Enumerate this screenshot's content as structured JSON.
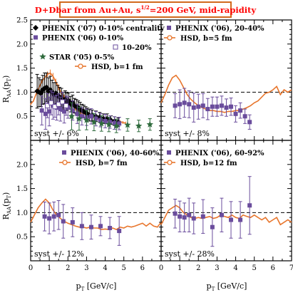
{
  "title": "D+Dbar from Au+Au, s^1/2=200 GeV, mid-rapidity",
  "title_parts": {
    "main": "D+Dbar",
    "rest1": " from Au+Au, s",
    "sup": "1/2",
    "rest2": "=200 GeV, mid-rapidity"
  },
  "colors": {
    "title_box_border": "#d2691e",
    "title_text": "#ff0000",
    "hsd": "#e8762d",
    "phenix": "#6a4c9c",
    "phenix07": "#000000",
    "star": "#2f6b3d",
    "dashed": "#000000"
  },
  "axis_text": {
    "x_label_main": "p",
    "x_label_sub": "T",
    "x_label_rest": " [GeV/c]",
    "y_label_main": "R",
    "y_label_sub": "AA",
    "y_label_rest": "(p",
    "y_label_sub2": "T",
    "y_label_end": ")"
  },
  "chart_data": [
    {
      "type": "line",
      "panel": "top-left",
      "xlim": [
        0,
        7
      ],
      "ylim": [
        0,
        2.5
      ],
      "x_ticks": [],
      "y_ticks": [
        "0.5",
        "1.0",
        "1.5",
        "2.0",
        "2.5"
      ],
      "legend": [
        {
          "marker": "diamond",
          "color": "#000000",
          "label": "PHENIX ('07) 0-10% centrality"
        },
        {
          "marker": "square",
          "color": "#6a4c9c",
          "label": "PHENIX ('06) 0-10%"
        },
        {
          "marker": "open-square",
          "color": "#6a4c9c",
          "label": "10-20%"
        },
        {
          "marker": "star",
          "color": "#2f6b3d",
          "label": "STAR ('05) 0-5%"
        },
        {
          "marker": "open-circle-line",
          "color": "#e8762d",
          "label": "HSD, b=1 fm"
        }
      ],
      "syst": "syst +/- 6%",
      "series": [
        {
          "name": "HSD, b=1 fm",
          "style": "hsd",
          "x": [
            0.0,
            0.15,
            0.3,
            0.45,
            0.6,
            0.75,
            0.9,
            1.05,
            1.2,
            1.35,
            1.5,
            1.65,
            1.8,
            1.95,
            2.1,
            2.25,
            2.4,
            2.55,
            2.7,
            2.85,
            3.0,
            3.15,
            3.3,
            3.45,
            3.6,
            3.75,
            3.9,
            4.05,
            4.2,
            4.35,
            4.5,
            4.65,
            4.8,
            4.95,
            5.1
          ],
          "y": [
            0.75,
            0.82,
            0.97,
            1.1,
            1.22,
            1.3,
            1.37,
            1.4,
            1.33,
            1.22,
            1.1,
            0.98,
            0.9,
            0.83,
            0.78,
            0.72,
            0.66,
            0.62,
            0.58,
            0.55,
            0.53,
            0.5,
            0.48,
            0.46,
            0.45,
            0.43,
            0.42,
            0.41,
            0.4,
            0.4,
            0.38,
            0.38,
            0.39,
            0.37,
            0.36
          ],
          "yerr": [
            0.02,
            0.02,
            0.03,
            0.03,
            0.04,
            0.05,
            0.06,
            0.07,
            0.07,
            0.06,
            0.06,
            0.05,
            0.05,
            0.05,
            0.05,
            0.04,
            0.04,
            0.04,
            0.04,
            0.04,
            0.04,
            0.04,
            0.03,
            0.03,
            0.03,
            0.03,
            0.03,
            0.03,
            0.03,
            0.03,
            0.03,
            0.03,
            0.03,
            0.03,
            0.03
          ]
        },
        {
          "name": "PHENIX ('07) 0-10% centrality",
          "style": "diamond",
          "x": [
            0.35,
            0.45,
            0.55,
            0.65,
            0.75,
            0.85,
            0.95,
            1.05,
            1.15,
            1.25,
            1.35,
            1.45,
            1.55,
            1.65,
            1.75,
            1.85,
            1.95,
            2.05,
            2.15,
            2.25,
            2.35,
            2.45,
            2.55,
            2.65,
            2.75,
            2.85,
            2.95,
            3.05,
            3.15,
            3.3,
            3.5,
            3.7,
            3.9,
            4.1,
            4.3,
            4.5,
            4.7
          ],
          "y": [
            1.02,
            1.0,
            0.98,
            1.05,
            1.08,
            1.1,
            1.02,
            1.05,
            1.0,
            0.95,
            0.98,
            0.92,
            0.9,
            0.88,
            0.82,
            0.85,
            0.8,
            0.82,
            0.75,
            0.78,
            0.72,
            0.7,
            0.68,
            0.65,
            0.62,
            0.6,
            0.58,
            0.55,
            0.52,
            0.52,
            0.5,
            0.48,
            0.45,
            0.45,
            0.42,
            0.4,
            0.38
          ],
          "yerr": [
            0.35,
            0.3,
            0.28,
            0.3,
            0.32,
            0.3,
            0.28,
            0.28,
            0.25,
            0.25,
            0.22,
            0.22,
            0.2,
            0.2,
            0.18,
            0.18,
            0.18,
            0.17,
            0.16,
            0.16,
            0.15,
            0.15,
            0.14,
            0.14,
            0.13,
            0.13,
            0.12,
            0.12,
            0.12,
            0.11,
            0.11,
            0.1,
            0.1,
            0.1,
            0.09,
            0.09,
            0.09
          ]
        },
        {
          "name": "PHENIX ('06) 0-10%",
          "style": "square",
          "x": [
            0.6,
            0.8,
            1.0,
            1.2,
            1.4,
            1.6,
            1.8,
            2.0,
            2.25,
            2.5,
            2.75,
            3.0,
            3.25,
            3.5,
            3.75,
            4.0,
            4.25,
            4.5,
            4.75
          ],
          "y": [
            0.62,
            0.55,
            0.6,
            0.72,
            0.68,
            0.65,
            0.6,
            0.68,
            0.62,
            0.55,
            0.5,
            0.48,
            0.5,
            0.45,
            0.42,
            0.4,
            0.38,
            0.36,
            0.35
          ],
          "yerr": [
            0.3,
            0.32,
            0.3,
            0.28,
            0.26,
            0.25,
            0.24,
            0.22,
            0.2,
            0.2,
            0.18,
            0.17,
            0.16,
            0.15,
            0.14,
            0.14,
            0.13,
            0.13,
            0.13
          ]
        },
        {
          "name": "10-20%",
          "style": "open-square",
          "x": [
            0.9,
            1.1,
            1.3,
            1.5,
            1.7,
            1.9
          ],
          "y": [
            0.72,
            0.78,
            0.7,
            0.75,
            0.8,
            0.72
          ],
          "yerr": [
            0.25,
            0.25,
            0.22,
            0.22,
            0.2,
            0.2
          ]
        },
        {
          "name": "STAR ('05) 0-5%",
          "style": "star",
          "x": [
            2.2,
            2.6,
            3.0,
            3.4,
            3.8,
            4.2,
            4.6,
            5.2,
            5.8,
            6.4
          ],
          "y": [
            0.5,
            0.45,
            0.42,
            0.38,
            0.35,
            0.33,
            0.3,
            0.32,
            0.3,
            0.33
          ],
          "yerr": [
            0.28,
            0.24,
            0.2,
            0.18,
            0.16,
            0.15,
            0.14,
            0.13,
            0.12,
            0.12
          ]
        }
      ]
    },
    {
      "type": "line",
      "panel": "top-right",
      "xlim": [
        0,
        7
      ],
      "ylim": [
        0,
        2.5
      ],
      "legend": [
        {
          "marker": "square",
          "color": "#6a4c9c",
          "label": "PHENIX ('06), 20-40%"
        },
        {
          "marker": "open-circle-line",
          "color": "#e8762d",
          "label": "HSD, b=5 fm"
        }
      ],
      "syst": "syst +/- 8%",
      "series": [
        {
          "name": "HSD, b=5 fm",
          "style": "hsd",
          "x": [
            0.0,
            0.2,
            0.4,
            0.6,
            0.8,
            1.0,
            1.2,
            1.4,
            1.6,
            1.8,
            2.0,
            2.2,
            2.4,
            2.6,
            2.8,
            3.0,
            3.2,
            3.4,
            3.6,
            3.8,
            4.0,
            4.2,
            4.4,
            4.6,
            4.8,
            5.0,
            5.2,
            5.4,
            5.6,
            5.8,
            6.0,
            6.2,
            6.4,
            6.6,
            6.8,
            7.0
          ],
          "y": [
            0.78,
            0.95,
            1.15,
            1.3,
            1.35,
            1.25,
            1.1,
            0.95,
            0.85,
            0.78,
            0.72,
            0.68,
            0.65,
            0.62,
            0.62,
            0.6,
            0.6,
            0.58,
            0.6,
            0.6,
            0.62,
            0.62,
            0.65,
            0.68,
            0.72,
            0.78,
            0.82,
            0.9,
            0.98,
            1.0,
            1.05,
            1.12,
            0.95,
            1.05,
            1.0,
            1.05
          ]
        },
        {
          "name": "PHENIX ('06), 20-40%",
          "style": "square",
          "x": [
            0.75,
            1.0,
            1.25,
            1.5,
            1.75,
            2.0,
            2.25,
            2.5,
            2.75,
            3.0,
            3.25,
            3.5,
            3.75,
            4.0,
            4.25,
            4.5,
            4.75
          ],
          "y": [
            0.72,
            0.75,
            0.78,
            0.75,
            0.68,
            0.7,
            0.72,
            0.65,
            0.7,
            0.7,
            0.72,
            0.68,
            0.7,
            0.55,
            0.62,
            0.5,
            0.38
          ],
          "yerr": [
            0.25,
            0.3,
            0.3,
            0.28,
            0.3,
            0.26,
            0.25,
            0.22,
            0.2,
            0.2,
            0.2,
            0.18,
            0.18,
            0.17,
            0.16,
            0.15,
            0.15
          ]
        }
      ]
    },
    {
      "type": "line",
      "panel": "bottom-left",
      "xlim": [
        0,
        7
      ],
      "ylim": [
        0,
        2.5
      ],
      "x_ticks": [
        "0",
        "1",
        "2",
        "3",
        "4",
        "5",
        "6"
      ],
      "y_ticks": [
        "0.5",
        "1.0",
        "1.5",
        "2.0"
      ],
      "legend": [
        {
          "marker": "square",
          "color": "#6a4c9c",
          "label": "PHENIX ('06), 40-60%"
        },
        {
          "marker": "open-circle-line",
          "color": "#e8762d",
          "label": "HSD, b=7 fm"
        }
      ],
      "syst": "syst +/- 12%",
      "series": [
        {
          "name": "HSD, b=7 fm",
          "style": "hsd",
          "x": [
            0.0,
            0.2,
            0.4,
            0.6,
            0.8,
            1.0,
            1.2,
            1.4,
            1.6,
            1.8,
            2.0,
            2.2,
            2.4,
            2.6,
            2.8,
            3.0,
            3.2,
            3.4,
            3.6,
            3.8,
            4.0,
            4.2,
            4.4,
            4.6,
            4.8,
            5.0,
            5.2,
            5.4,
            5.6,
            5.8,
            6.0,
            6.2,
            6.4,
            6.6,
            6.8,
            7.0
          ],
          "y": [
            0.8,
            0.95,
            1.1,
            1.2,
            1.28,
            1.2,
            1.05,
            0.95,
            0.88,
            0.82,
            0.78,
            0.75,
            0.72,
            0.7,
            0.7,
            0.68,
            0.7,
            0.68,
            0.68,
            0.65,
            0.66,
            0.65,
            0.68,
            0.65,
            0.7,
            0.68,
            0.72,
            0.7,
            0.72,
            0.75,
            0.78,
            0.72,
            0.78,
            0.72,
            0.7,
            0.8
          ]
        },
        {
          "name": "PHENIX ('06), 40-60%",
          "style": "square",
          "x": [
            0.75,
            1.0,
            1.25,
            1.5,
            1.75,
            2.25,
            2.75,
            3.25,
            3.75,
            4.25,
            4.75
          ],
          "y": [
            0.92,
            0.88,
            0.92,
            0.95,
            0.82,
            0.8,
            0.72,
            0.7,
            0.72,
            0.68,
            0.62
          ],
          "yerr": [
            0.3,
            0.32,
            0.3,
            0.3,
            0.35,
            0.3,
            0.28,
            0.25,
            0.2,
            0.22,
            0.3
          ]
        }
      ]
    },
    {
      "type": "line",
      "panel": "bottom-right",
      "xlim": [
        0,
        7
      ],
      "ylim": [
        0,
        2.5
      ],
      "x_ticks": [
        "0",
        "1",
        "2",
        "3",
        "4",
        "5",
        "6",
        "7"
      ],
      "legend": [
        {
          "marker": "square",
          "color": "#6a4c9c",
          "label": "PHENIX ('06), 60-92%"
        },
        {
          "marker": "open-circle-line",
          "color": "#e8762d",
          "label": "HSD, b=12 fm"
        }
      ],
      "syst": "syst +/- 28%",
      "series": [
        {
          "name": "HSD, b=12 fm",
          "style": "hsd",
          "x": [
            0.0,
            0.2,
            0.4,
            0.6,
            0.8,
            1.0,
            1.2,
            1.4,
            1.6,
            1.8,
            2.0,
            2.2,
            2.4,
            2.6,
            2.8,
            3.0,
            3.2,
            3.4,
            3.6,
            3.8,
            4.0,
            4.2,
            4.4,
            4.6,
            4.8,
            5.0,
            5.2,
            5.4,
            5.6,
            5.8,
            6.0,
            6.2,
            6.4,
            6.6,
            6.8,
            7.0
          ],
          "y": [
            0.75,
            0.9,
            1.05,
            1.1,
            1.15,
            1.1,
            1.0,
            0.95,
            0.9,
            0.88,
            0.9,
            0.88,
            0.9,
            0.92,
            0.88,
            0.9,
            0.95,
            0.92,
            0.9,
            0.95,
            0.9,
            0.88,
            0.95,
            0.92,
            0.9,
            0.95,
            0.9,
            0.85,
            0.9,
            0.8,
            0.85,
            0.9,
            0.75,
            0.8,
            0.85,
            0.8
          ]
        },
        {
          "name": "PHENIX ('06), 60-92%",
          "style": "square",
          "x": [
            0.75,
            1.0,
            1.25,
            1.5,
            1.75,
            2.25,
            2.75,
            3.25,
            3.75,
            4.25,
            4.75
          ],
          "y": [
            0.98,
            0.92,
            0.9,
            0.95,
            0.88,
            0.92,
            0.7,
            0.95,
            0.85,
            0.85,
            1.15
          ],
          "yerr": [
            0.3,
            0.32,
            0.3,
            0.35,
            0.32,
            0.35,
            0.4,
            0.35,
            0.38,
            0.38,
            0.6
          ]
        }
      ]
    }
  ]
}
